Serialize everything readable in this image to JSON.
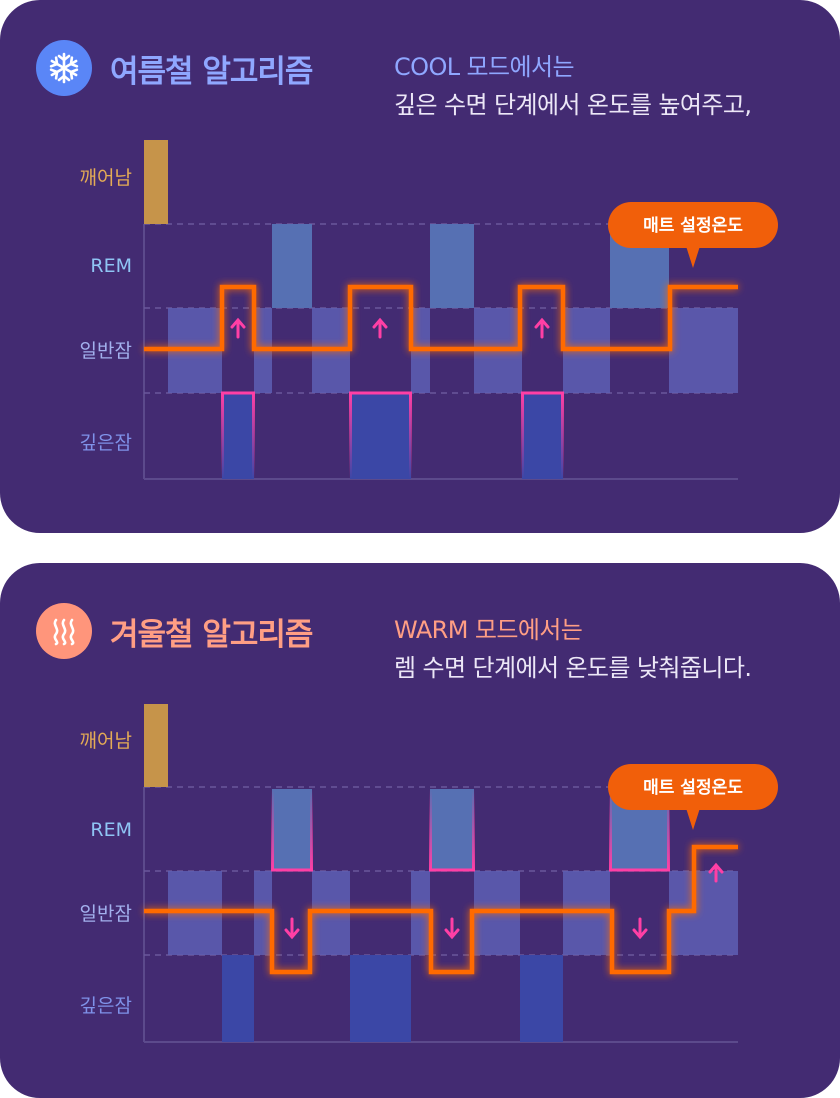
{
  "summer": {
    "icon": "snowflake-icon",
    "title": "여름철 알고리즘",
    "mode": "COOL",
    "line1_rest": " 모드에서는",
    "line2": "깊은 수면 단계에서 온도를 높여주고,",
    "callout": "매트 설정온도"
  },
  "winter": {
    "icon": "heat-waves-icon",
    "title": "겨울철 알고리즘",
    "mode": "WARM",
    "line1_rest": " 모드에서는",
    "line2": "렘 수면 단계에서 온도를 낮춰줍니다.",
    "callout": "매트 설정온도"
  },
  "stage_labels": {
    "awake": "깨어남",
    "rem": "REM",
    "light": "일반잠",
    "deep": "깊은잠"
  },
  "colors": {
    "card_bg": "#432b72",
    "summer_accent": "#8fa7ff",
    "winter_accent": "#ff9e84",
    "temp_line": "#ff6a00",
    "highlight": "#ff3fa5",
    "awake_bar": "#c6944a",
    "rem_bar": "#5670b3",
    "light_bar": "#5e5fb4",
    "deep_bar": "#3b47a6"
  }
}
